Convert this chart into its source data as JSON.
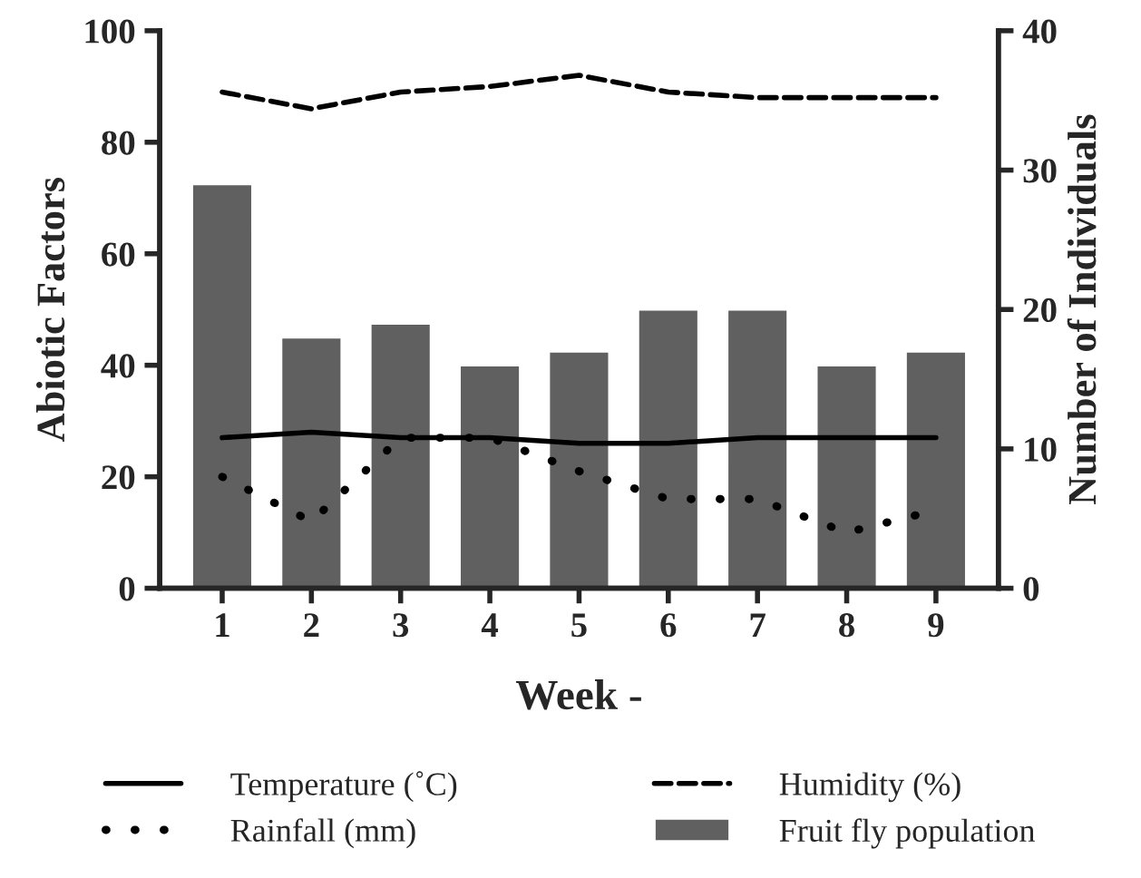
{
  "chart_data": {
    "type": "line",
    "xlabel": "Week -",
    "ylabel": "Abiotic Factors",
    "y2label": "Number of Individuals",
    "categories": [
      "1",
      "2",
      "3",
      "4",
      "5",
      "6",
      "7",
      "8",
      "9"
    ],
    "series": [
      {
        "name": "Temperature (˚C)",
        "line_style": "solid",
        "color": "#000000",
        "values": [
          27,
          28,
          27,
          27,
          26,
          26,
          27,
          27,
          27
        ]
      },
      {
        "name": "Humidity (%)",
        "line_style": "dashed",
        "color": "#000000",
        "values": [
          89,
          86,
          89,
          90,
          92,
          89,
          88,
          88,
          88
        ]
      },
      {
        "name": "Rainfall (mm)",
        "line_style": "dotted",
        "color": "#000000",
        "values": [
          20,
          12,
          27,
          27,
          21,
          16,
          16,
          10,
          14
        ]
      },
      {
        "name": "Fruit fly population",
        "type": "bar",
        "axis": "y2",
        "color": "#606060",
        "values": [
          29,
          18,
          19,
          16,
          17,
          20,
          20,
          16,
          17
        ]
      }
    ],
    "ylim": [
      0,
      100
    ],
    "yticks": [
      0,
      20,
      40,
      60,
      80,
      100
    ],
    "y2lim": [
      0,
      40
    ],
    "y2ticks": [
      0,
      10,
      20,
      30,
      40
    ],
    "grid": false,
    "legend": "bottom"
  }
}
